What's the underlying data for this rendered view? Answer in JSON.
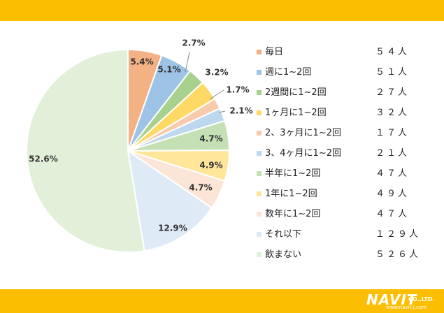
{
  "chart_data": {
    "type": "pie",
    "start_angle_deg": 0,
    "direction": "clockwise",
    "legend_position": "right",
    "slices": [
      {
        "label": "毎日",
        "value": 5.4,
        "value_label": "5.4%",
        "count": "５４人",
        "color": "#F4B183"
      },
      {
        "label": "週に1~2回",
        "value": 5.1,
        "value_label": "5.1%",
        "count": "５１人",
        "color": "#9DC3E6"
      },
      {
        "label": "2週間に1~2回",
        "value": 2.7,
        "value_label": "2.7%",
        "count": "２７人",
        "color": "#A9D18E"
      },
      {
        "label": "1ヶ月に1~2回",
        "value": 3.2,
        "value_label": "3.2%",
        "count": "３２人",
        "color": "#FFD966"
      },
      {
        "label": "2、3ヶ月に1~2回",
        "value": 1.7,
        "value_label": "1.7%",
        "count": "１７人",
        "color": "#F8CBAD"
      },
      {
        "label": "3、4ヶ月に1~2回",
        "value": 2.1,
        "value_label": "2.1%",
        "count": "２１人",
        "color": "#BDD7EE"
      },
      {
        "label": "半年に1~2回",
        "value": 4.7,
        "value_label": "4.7%",
        "count": "４７人",
        "color": "#C5E0B4"
      },
      {
        "label": "1年に1~2回",
        "value": 4.9,
        "value_label": "4.9%",
        "count": "４９人",
        "color": "#FFE699"
      },
      {
        "label": "数年に1~2回",
        "value": 4.7,
        "value_label": "4.7%",
        "count": "４７人",
        "color": "#FBE5D6"
      },
      {
        "label": "それ以下",
        "value": 12.9,
        "value_label": "12.9%",
        "count": "１２９人",
        "color": "#DEEBF7"
      },
      {
        "label": "飲まない",
        "value": 52.6,
        "value_label": "52.6%",
        "count": "５２６人",
        "color": "#E2F0D9"
      }
    ]
  },
  "logo": {
    "word": "NAVIT",
    "suffix": "CO.,LTD.",
    "url": "www.navit-j.com"
  },
  "theme": {
    "bar_color": "#FBBE00"
  }
}
